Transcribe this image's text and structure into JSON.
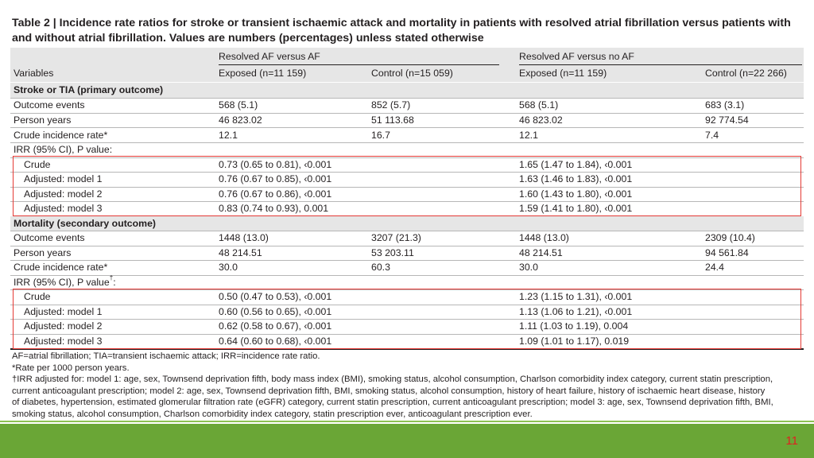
{
  "title": "Table 2 | Incidence rate ratios for stroke or transient ischaemic attack and mortality in patients with resolved atrial fibrillation versus patients with and without atrial fibrillation. Values are numbers (percentages) unless stated otherwise",
  "header": {
    "group1": "Resolved AF versus AF",
    "group2": "Resolved AF versus no AF",
    "variables": "Variables",
    "exposed1": "Exposed (n=11 159)",
    "control1": "Control (n=15 059)",
    "exposed2": "Exposed (n=11 159)",
    "control2": "Control (n=22 266)"
  },
  "section1": {
    "title": "Stroke or TIA (primary outcome)",
    "rows": [
      [
        "Outcome events",
        "568 (5.1)",
        "852 (5.7)",
        "568 (5.1)",
        "683 (3.1)"
      ],
      [
        "Person years",
        "46 823.02",
        "51 113.68",
        "46 823.02",
        "92 774.54"
      ],
      [
        "Crude incidence rate*",
        "12.1",
        "16.7",
        "12.1",
        "7.4"
      ],
      [
        "IRR (95% CI), P value:",
        "",
        "",
        "",
        ""
      ],
      [
        "Crude",
        "0.73 (0.65 to 0.81), ‹0.001",
        "",
        "1.65 (1.47 to 1.84), ‹0.001",
        ""
      ],
      [
        "Adjusted: model 1",
        "0.76 (0.67 to 0.85), ‹0.001",
        "",
        "1.63 (1.46 to 1.83), ‹0.001",
        ""
      ],
      [
        "Adjusted: model 2",
        "0.76 (0.67 to 0.86), ‹0.001",
        "",
        "1.60 (1.43 to 1.80), ‹0.001",
        ""
      ],
      [
        "Adjusted: model 3",
        "0.83 (0.74 to 0.93), 0.001",
        "",
        "1.59 (1.41 to 1.80), ‹0.001",
        ""
      ]
    ]
  },
  "section2": {
    "title": "Mortality (secondary outcome)",
    "rows": [
      [
        "Outcome events",
        "1448 (13.0)",
        "3207 (21.3)",
        "1448 (13.0)",
        "2309 (10.4)"
      ],
      [
        "Person years",
        "48 214.51",
        "53 203.11",
        "48 214.51",
        "94 561.84"
      ],
      [
        "Crude incidence rate*",
        "30.0",
        "60.3",
        "30.0",
        "24.4"
      ],
      [
        "IRR (95% CI), P value",
        "",
        "",
        "",
        ""
      ],
      [
        "Crude",
        "0.50 (0.47 to 0.53), ‹0.001",
        "",
        "1.23 (1.15 to 1.31), ‹0.001",
        ""
      ],
      [
        "Adjusted: model 1",
        "0.60 (0.56 to 0.65), ‹0.001",
        "",
        "1.13 (1.06 to 1.21), ‹0.001",
        ""
      ],
      [
        "Adjusted: model 2",
        "0.62 (0.58 to 0.67), ‹0.001",
        "",
        "1.11 (1.03 to 1.19), 0.004",
        ""
      ],
      [
        "Adjusted: model 3",
        "0.64 (0.60 to 0.68), ‹0.001",
        "",
        "1.09 (1.01 to 1.17), 0.019",
        ""
      ]
    ],
    "irr_superscript": "†",
    "irr_suffix": ":"
  },
  "footnotes": [
    "AF=atrial fibrillation; TIA=transient ischaemic attack; IRR=incidence rate ratio.",
    "*Rate per 1000 person years.",
    "†IRR adjusted for: model 1: age, sex, Townsend deprivation fifth, body mass index (BMI), smoking status, alcohol consumption, Charlson comorbidity index category, current statin prescription,",
    "current anticoagulant prescription; model 2: age, sex, Townsend deprivation fifth, BMI, smoking status, alcohol consumption, history of heart failure, history of ischaemic heart disease, history",
    "of diabetes, hypertension, estimated glomerular filtration rate (eGFR) category, current statin prescription, current anticoagulant prescription; model 3: age, sex, Townsend deprivation fifth, BMI,",
    "smoking status, alcohol consumption, Charlson comorbidity index category, statin prescription ever, anticoagulant prescription ever."
  ],
  "page_number": "11",
  "colors": {
    "highlight_box": "#e53935",
    "footer_bar": "#6aa636",
    "page_number": "#e02020",
    "band": "#e6e6e6"
  }
}
